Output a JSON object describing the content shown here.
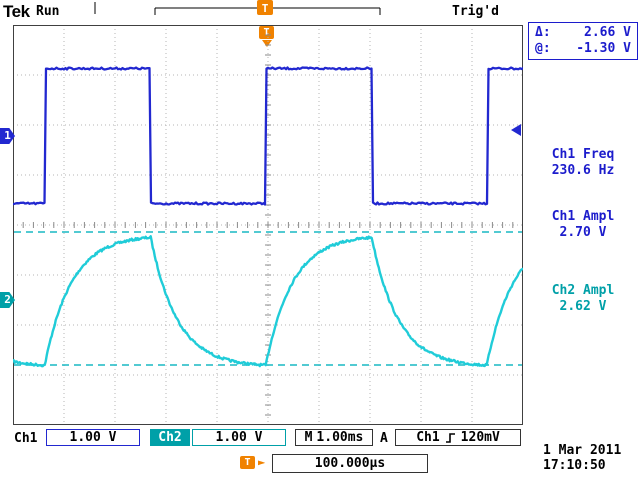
{
  "header": {
    "brand": "Tek",
    "acq_status": "Run",
    "trigger_status": "Trig'd",
    "trigger_symbol": "T"
  },
  "cursor_readout": {
    "delta_label": "Δ:",
    "delta_value": "2.66 V",
    "at_label": "@:",
    "at_value": "-1.30 V"
  },
  "measurements": [
    {
      "label": "Ch1 Freq",
      "value": "230.6 Hz",
      "color": "#1c1ccc"
    },
    {
      "label": "Ch1 Ampl",
      "value": "2.70 V",
      "color": "#1c1ccc"
    },
    {
      "label": "Ch2 Ampl",
      "value": "2.62 V",
      "color": "#00a0a8"
    }
  ],
  "channel_markers": {
    "ch1": "1",
    "ch2": "2"
  },
  "statusbar": {
    "ch1_label": "Ch1",
    "ch1_scale": "1.00 V",
    "ch2_label": "Ch2",
    "ch2_scale": "1.00 V",
    "time_label": "M",
    "time_scale": "1.00ms",
    "trig_mode_label": "A",
    "trig_source": "Ch1",
    "trig_level": "120mV"
  },
  "footer": {
    "trigger_symbol": "T",
    "delay": "100.000µs",
    "date": "1 Mar 2011",
    "time": "17:10:50"
  },
  "chart_data": {
    "type": "line",
    "title": "Oscilloscope traces",
    "timebase": "1.00 ms/div",
    "divisions": {
      "x": 10,
      "y": 8
    },
    "series": [
      {
        "name": "Ch1",
        "color": "#2228d0",
        "waveform": "square",
        "volts_per_div": 1.0,
        "freq_hz": 230.6,
        "period_divs": 4.336,
        "duty_cycle": 0.48,
        "high_v": 1.35,
        "low_v": -1.35,
        "ground_div_from_top": 2.22,
        "first_rising_edge_div": 4.96
      },
      {
        "name": "Ch2",
        "color": "#20ccd8",
        "waveform": "rc_exponential",
        "volts_per_div": 1.0,
        "tau_divs": 0.52,
        "high_v": 1.3,
        "low_v": -1.34,
        "ground_div_from_top": 5.5
      }
    ],
    "cursors": {
      "mode": "voltage",
      "delta": "2.66 V",
      "at": "-1.30 V",
      "y1_div_from_top": 4.14,
      "y2_div_from_top": 6.8,
      "color": "#18b8c4"
    }
  }
}
